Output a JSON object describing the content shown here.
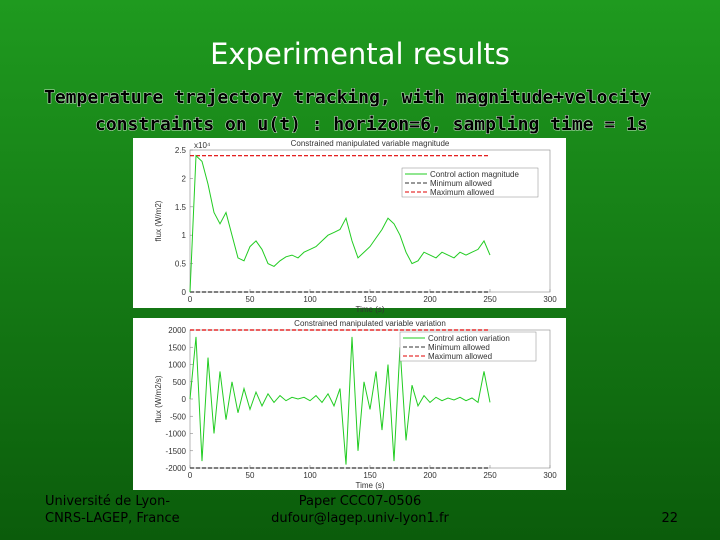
{
  "title": "Experimental results",
  "subtitle": [
    "Temperature trajectory tracking, with magnitude+velocity",
    "constraints on u(t) : horizon=6, sampling time = 1s"
  ],
  "footer": {
    "left": [
      "Université de Lyon-",
      "CNRS-LAGEP, France"
    ],
    "center": [
      "Paper CCC07-0506",
      "dufour@lagep.univ-lyon1.fr"
    ],
    "page": "22"
  },
  "chart_data": [
    {
      "type": "line",
      "title": "Constrained manipulated variable magnitude",
      "xlabel": "Time (s)",
      "ylabel": "flux (W/m2)",
      "y_multiplier": "x10⁴",
      "xlim": [
        0,
        300
      ],
      "xticks": [
        0,
        50,
        100,
        150,
        200,
        250,
        300
      ],
      "ylim": [
        0,
        2.5
      ],
      "yticks": [
        0,
        0.5,
        1,
        1.5,
        2,
        2.5
      ],
      "x": [
        0,
        5,
        10,
        15,
        20,
        25,
        30,
        35,
        40,
        45,
        50,
        55,
        60,
        65,
        70,
        75,
        80,
        85,
        90,
        95,
        100,
        105,
        110,
        115,
        120,
        125,
        130,
        135,
        140,
        145,
        150,
        155,
        160,
        165,
        170,
        175,
        180,
        185,
        190,
        195,
        200,
        205,
        210,
        215,
        220,
        225,
        230,
        235,
        240,
        245,
        250
      ],
      "series": [
        {
          "name": "Control action magnitude",
          "color": "#22cc22",
          "values": [
            0,
            2.4,
            2.3,
            1.9,
            1.4,
            1.2,
            1.4,
            1.0,
            0.6,
            0.55,
            0.8,
            0.9,
            0.75,
            0.5,
            0.45,
            0.55,
            0.62,
            0.65,
            0.6,
            0.7,
            0.75,
            0.8,
            0.9,
            1.0,
            1.05,
            1.1,
            1.3,
            0.9,
            0.6,
            0.7,
            0.8,
            0.95,
            1.1,
            1.3,
            1.2,
            1.0,
            0.7,
            0.5,
            0.55,
            0.7,
            0.65,
            0.6,
            0.7,
            0.65,
            0.6,
            0.7,
            0.65,
            0.7,
            0.75,
            0.9,
            0.65
          ]
        }
      ],
      "limits": [
        {
          "name": "Minimum allowed",
          "color": "#333333",
          "value": 0
        },
        {
          "name": "Maximum allowed",
          "color": "#e00000",
          "value": 2.4
        }
      ]
    },
    {
      "type": "line",
      "title": "Constrained manipulated variable variation",
      "xlabel": "Time (s)",
      "ylabel": "flux (W/m2/s)",
      "xlim": [
        0,
        300
      ],
      "xticks": [
        0,
        50,
        100,
        150,
        200,
        250,
        300
      ],
      "ylim": [
        -2000,
        2000
      ],
      "yticks": [
        -2000,
        -1500,
        -1000,
        -500,
        0,
        500,
        1000,
        1500,
        2000
      ],
      "x": [
        0,
        5,
        10,
        15,
        20,
        25,
        30,
        35,
        40,
        45,
        50,
        55,
        60,
        65,
        70,
        75,
        80,
        85,
        90,
        95,
        100,
        105,
        110,
        115,
        120,
        125,
        130,
        135,
        140,
        145,
        150,
        155,
        160,
        165,
        170,
        175,
        180,
        185,
        190,
        195,
        200,
        205,
        210,
        215,
        220,
        225,
        230,
        235,
        240,
        245,
        250
      ],
      "series": [
        {
          "name": "Control action variation",
          "color": "#22cc22",
          "values": [
            0,
            1800,
            -1800,
            1200,
            -1000,
            800,
            -600,
            500,
            -400,
            300,
            -300,
            200,
            -200,
            150,
            -100,
            100,
            -50,
            50,
            0,
            50,
            -50,
            100,
            -100,
            150,
            -200,
            300,
            -1900,
            1800,
            -1500,
            500,
            -300,
            800,
            -900,
            1000,
            -1800,
            1500,
            -1200,
            400,
            -200,
            100,
            -100,
            50,
            -50,
            30,
            -30,
            50,
            -50,
            30,
            -100,
            800,
            -100
          ]
        }
      ],
      "limits": [
        {
          "name": "Minimum allowed",
          "color": "#333333",
          "value": -2000
        },
        {
          "name": "Maximum allowed",
          "color": "#e00000",
          "value": 2000
        }
      ]
    }
  ]
}
